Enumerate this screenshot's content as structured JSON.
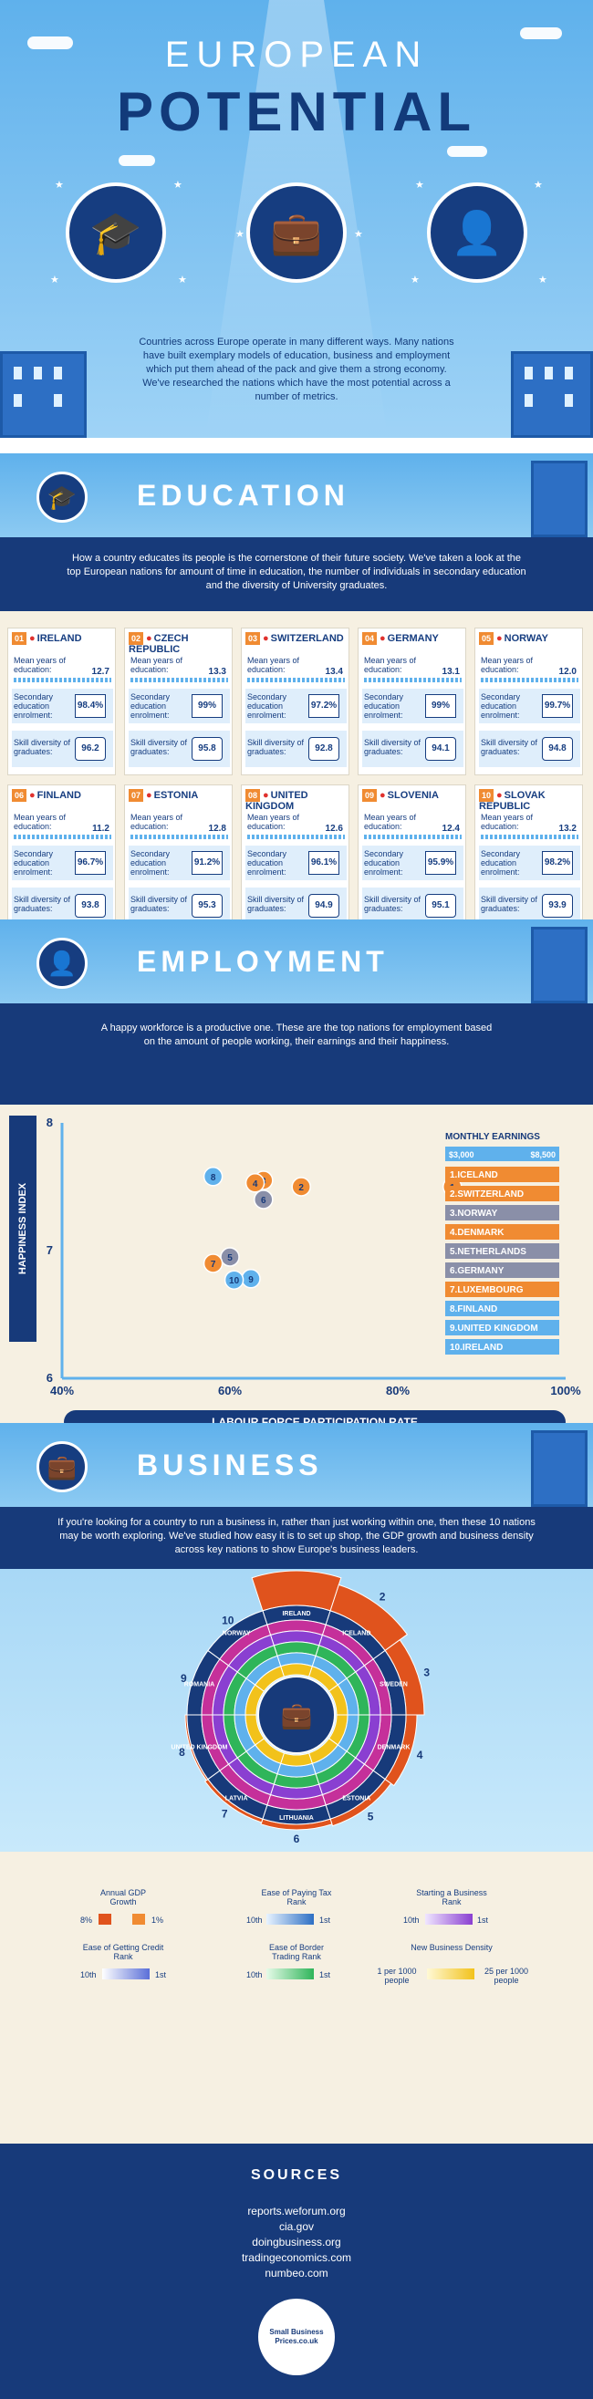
{
  "header": {
    "title_line1": "EUROPEAN",
    "title_line2": "POTENTIAL",
    "intro": "Countries across Europe operate in many different ways. Many nations have built exemplary models of education, business and employment which put them ahead of the pack and give them a strong economy. We've researched the nations which have the most potential across a number of metrics."
  },
  "education": {
    "title": "EDUCATION",
    "intro": "How a country educates its people is the cornerstone of their future society. We've taken a look at the top European nations for amount of time in education, the number of individuals in secondary education and the diversity of University graduates.",
    "label_mean": "Mean years of education:",
    "label_sec": "Secondary education enrolment:",
    "label_skill": "Skill diversity of graduates:",
    "countries": [
      {
        "num": "01",
        "name": "IRELAND",
        "mean": "12.7",
        "sec": "98.4%",
        "skill": "96.2"
      },
      {
        "num": "02",
        "name": "CZECH REPUBLIC",
        "mean": "13.3",
        "sec": "99%",
        "skill": "95.8"
      },
      {
        "num": "03",
        "name": "SWITZERLAND",
        "mean": "13.4",
        "sec": "97.2%",
        "skill": "92.8"
      },
      {
        "num": "04",
        "name": "GERMANY",
        "mean": "13.1",
        "sec": "99%",
        "skill": "94.1"
      },
      {
        "num": "05",
        "name": "NORWAY",
        "mean": "12.0",
        "sec": "99.7%",
        "skill": "94.8"
      },
      {
        "num": "06",
        "name": "FINLAND",
        "mean": "11.2",
        "sec": "96.7%",
        "skill": "93.8"
      },
      {
        "num": "07",
        "name": "ESTONIA",
        "mean": "12.8",
        "sec": "91.2%",
        "skill": "95.3"
      },
      {
        "num": "08",
        "name": "UNITED KINGDOM",
        "mean": "12.6",
        "sec": "96.1%",
        "skill": "94.9"
      },
      {
        "num": "09",
        "name": "SLOVENIA",
        "mean": "12.4",
        "sec": "95.9%",
        "skill": "95.1"
      },
      {
        "num": "10",
        "name": "SLOVAK REPUBLIC",
        "mean": "13.2",
        "sec": "98.2%",
        "skill": "93.9"
      }
    ]
  },
  "employment": {
    "title": "EMPLOYMENT",
    "intro": "A happy workforce is a productive one. These are the top nations for employment based on the amount of people working, their earnings and their happiness.",
    "legend_title": "MONTHLY EARNINGS",
    "earn_low": "$3,000",
    "earn_high": "$8,500",
    "legend": [
      "1.ICELAND",
      "2.SWITZERLAND",
      "3.NORWAY",
      "4.DENMARK",
      "5.NETHERLANDS",
      "6.GERMANY",
      "7.LUXEMBOURG",
      "8.FINLAND",
      "9.UNITED KINGDOM",
      "10.IRELAND"
    ]
  },
  "chart_data": {
    "type": "scatter",
    "xlabel": "LABOUR FORCE PARTICIPATION RATE",
    "ylabel": "HAPPINESS INDEX",
    "xlim": [
      40,
      100
    ],
    "ylim": [
      6,
      8
    ],
    "x_ticks": [
      "40%",
      "60%",
      "80%",
      "100%"
    ],
    "y_ticks": [
      "6",
      "7",
      "8"
    ],
    "points": [
      {
        "label": "1",
        "x": 86.5,
        "y": 7.5,
        "earnings": "high"
      },
      {
        "label": "2",
        "x": 68.5,
        "y": 7.5,
        "earnings": "high"
      },
      {
        "label": "3",
        "x": 64,
        "y": 7.55,
        "earnings": "high"
      },
      {
        "label": "4",
        "x": 63,
        "y": 7.53,
        "earnings": "high"
      },
      {
        "label": "5",
        "x": 60,
        "y": 6.95,
        "earnings": "mid"
      },
      {
        "label": "6",
        "x": 64,
        "y": 7.4,
        "earnings": "mid"
      },
      {
        "label": "7",
        "x": 58,
        "y": 6.9,
        "earnings": "high"
      },
      {
        "label": "8",
        "x": 58,
        "y": 7.58,
        "earnings": "low"
      },
      {
        "label": "9",
        "x": 62.5,
        "y": 6.78,
        "earnings": "low"
      },
      {
        "label": "10",
        "x": 60.5,
        "y": 6.77,
        "earnings": "low"
      }
    ]
  },
  "business": {
    "title": "BUSINESS",
    "intro": "If you're looking for a country to run a business in, rather than just working within one, then these 10 nations may be worth exploring. We've studied how easy it is to set up shop, the GDP growth and business density across key nations to show Europe's business leaders.",
    "ring": [
      {
        "num": "1",
        "name": "IRELAND"
      },
      {
        "num": "2",
        "name": "ICELAND"
      },
      {
        "num": "3",
        "name": "SWEDEN"
      },
      {
        "num": "4",
        "name": "DENMARK"
      },
      {
        "num": "5",
        "name": "ESTONIA"
      },
      {
        "num": "6",
        "name": "LITHUANIA"
      },
      {
        "num": "7",
        "name": "LATVIA"
      },
      {
        "num": "8",
        "name": "UNITED KINGDOM"
      },
      {
        "num": "9",
        "name": "ROMANIA"
      },
      {
        "num": "10",
        "name": "NORWAY"
      }
    ],
    "legend": {
      "gdp": "Annual GDP Growth",
      "gdp_lo": "8%",
      "gdp_hi": "1%",
      "tax": "Ease of Paying Tax Rank",
      "tax_lo": "10th",
      "tax_hi": "1st",
      "start": "Starting a Business Rank",
      "start_lo": "10th",
      "start_hi": "1st",
      "credit": "Ease of Getting Credit Rank",
      "credit_lo": "10th",
      "credit_hi": "1st",
      "border": "Ease of Border Trading Rank",
      "border_lo": "10th",
      "border_hi": "1st",
      "density": "New Business Density",
      "density_lo": "1 per 1000 people",
      "density_hi": "25 per 1000 people"
    }
  },
  "sources": {
    "title": "SOURCES",
    "items": [
      "reports.weforum.org",
      "cia.gov",
      "doingbusiness.org",
      "tradingeconomics.com",
      "numbeo.com"
    ],
    "logo": "Small Business Prices.co.uk"
  },
  "colors": {
    "navy": "#173a7a",
    "orange": "#f08b32",
    "sky": "#5fb1ec",
    "cream": "#f6f0e2"
  }
}
